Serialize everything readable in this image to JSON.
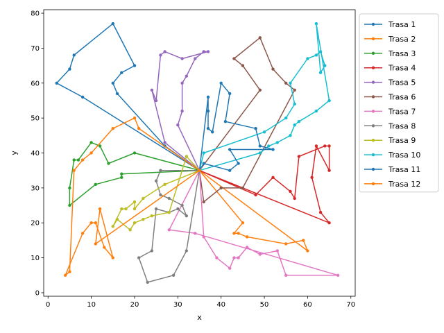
{
  "chart_data": {
    "type": "line",
    "xlabel": "x",
    "ylabel": "y",
    "xlim": [
      -1,
      71
    ],
    "ylim": [
      -1,
      81
    ],
    "xticks": [
      0,
      10,
      20,
      30,
      40,
      50,
      60,
      70
    ],
    "yticks": [
      0,
      10,
      20,
      30,
      40,
      50,
      60,
      70,
      80
    ],
    "grid": false,
    "legend_placement": "upper right, outside axes",
    "markers": "points",
    "series": [
      {
        "name": "Trasa 1",
        "color": "#1f77b4",
        "x": [
          35,
          8,
          2,
          5,
          6,
          15,
          20,
          17,
          15,
          16,
          27,
          35
        ],
        "y": [
          35,
          56,
          60,
          64,
          68,
          77,
          65,
          63,
          60,
          57,
          42,
          35
        ]
      },
      {
        "name": "Trasa 2",
        "color": "#ff7f0e",
        "x": [
          35,
          45,
          43,
          44,
          46,
          55,
          59,
          60,
          35
        ],
        "y": [
          35,
          20,
          17,
          17,
          16,
          14,
          15,
          12,
          35
        ]
      },
      {
        "name": "Trasa 3",
        "color": "#2ca02c",
        "x": [
          35,
          17,
          17,
          11,
          5,
          5,
          6,
          7,
          10,
          12,
          14,
          20,
          35
        ],
        "y": [
          35,
          34,
          33,
          31,
          25,
          30,
          38,
          38,
          43,
          42,
          37,
          40,
          35
        ]
      },
      {
        "name": "Trasa 4",
        "color": "#d62728",
        "x": [
          35,
          48,
          52,
          56,
          57,
          58,
          64,
          65,
          65,
          62,
          61,
          63,
          65,
          35
        ],
        "y": [
          35,
          28,
          33,
          29,
          27,
          39,
          42,
          42,
          35,
          42,
          33,
          23,
          20,
          35
        ]
      },
      {
        "name": "Trasa 5",
        "color": "#9467bd",
        "x": [
          35,
          30,
          31,
          31,
          32,
          34,
          36,
          37,
          31,
          27,
          26,
          25,
          24,
          27,
          35
        ],
        "y": [
          35,
          48,
          52,
          60,
          62,
          67,
          69,
          69,
          67,
          69,
          68,
          55,
          58,
          43,
          35
        ]
      },
      {
        "name": "Trasa 6",
        "color": "#8c564b",
        "x": [
          35,
          49,
          45,
          43,
          49,
          52,
          55,
          57,
          45,
          40,
          36,
          35
        ],
        "y": [
          35,
          58,
          65,
          67,
          73,
          64,
          60,
          58,
          30,
          30,
          26,
          35
        ]
      },
      {
        "name": "Trasa 7",
        "color": "#e377c2",
        "x": [
          35,
          36,
          39,
          42,
          43,
          44,
          46,
          49,
          53,
          55,
          67,
          34,
          28,
          35
        ],
        "y": [
          35,
          16,
          10,
          7,
          10,
          10,
          13,
          11,
          12,
          5,
          5,
          17,
          18,
          35
        ]
      },
      {
        "name": "Trasa 8",
        "color": "#7f7f7f",
        "x": [
          35,
          26,
          25,
          26,
          28,
          31,
          32,
          30,
          28,
          25,
          24,
          21,
          23,
          29,
          32,
          35
        ],
        "y": [
          35,
          35,
          32,
          28,
          27,
          25,
          22,
          24,
          23,
          24,
          12,
          10,
          3,
          5,
          12,
          35
        ]
      },
      {
        "name": "Trasa 9",
        "color": "#bcbd22",
        "x": [
          35,
          27,
          22,
          20,
          20,
          18,
          17,
          15,
          16,
          19,
          20,
          22,
          24,
          28,
          32,
          35
        ],
        "y": [
          35,
          31,
          27,
          24,
          26,
          24,
          24,
          19,
          21,
          18,
          20,
          21,
          22,
          23,
          39,
          35
        ]
      },
      {
        "name": "Trasa 10",
        "color": "#17becf",
        "x": [
          35,
          36,
          50,
          55,
          57,
          56,
          60,
          62,
          63,
          64,
          63,
          62,
          65,
          65,
          62,
          58,
          57,
          56,
          53,
          51,
          49,
          35
        ],
        "y": [
          35,
          40,
          46,
          50,
          54,
          60,
          67,
          68,
          69,
          65,
          63,
          77,
          55,
          55,
          52,
          49,
          48,
          45,
          43,
          42,
          40,
          35
        ]
      },
      {
        "name": "Trasa 11",
        "color": "#1f77b4",
        "x": [
          35,
          37,
          37,
          37,
          38,
          40,
          42,
          41,
          48,
          49,
          52,
          42,
          44,
          42,
          36,
          35
        ],
        "y": [
          35,
          56,
          52,
          47,
          46,
          60,
          57,
          49,
          47,
          42,
          41,
          41,
          37,
          35,
          37,
          35
        ]
      },
      {
        "name": "Trasa 12",
        "color": "#ff7f0e",
        "x": [
          35,
          21,
          20,
          15,
          10,
          8,
          6,
          5,
          4,
          8,
          10,
          11,
          13,
          15,
          12,
          11,
          35
        ],
        "y": [
          35,
          47,
          50,
          47,
          40,
          38,
          35,
          6,
          5,
          17,
          20,
          20,
          13,
          10,
          24,
          14,
          35
        ]
      }
    ]
  }
}
